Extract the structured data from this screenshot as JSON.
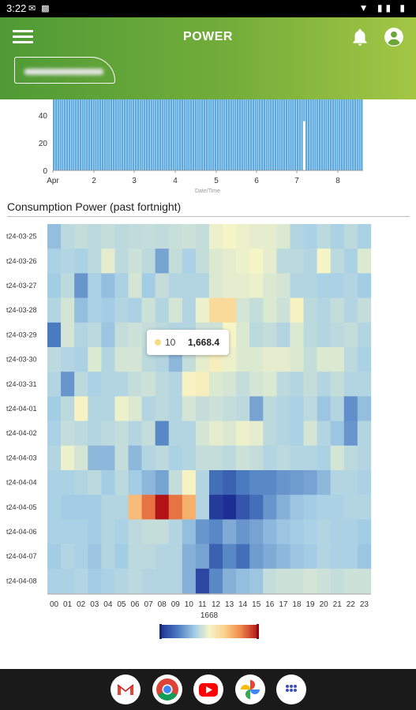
{
  "status_bar": {
    "time": "3:22"
  },
  "app_bar": {
    "title": "POWER"
  },
  "top_chart": {
    "type": "bar",
    "y_ticks": [
      "0",
      "20",
      "40"
    ],
    "x_ticks": [
      "Apr",
      "2",
      "3",
      "4",
      "5",
      "6",
      "7",
      "8"
    ],
    "xlabel": "Date/Time",
    "y_value": 60,
    "ylim": [
      0,
      60
    ],
    "bar_color": "#5aa8e0"
  },
  "heatmap": {
    "title": "Consumption Power (past fortnight)"
  },
  "chart_data": {
    "type": "heatmap",
    "title": "Consumption Power (past fortnight)",
    "rows": [
      "t24-03-25",
      "t24-03-26",
      "t24-03-27",
      "t24-03-28",
      "t24-03-29",
      "t24-03-30",
      "t24-03-31",
      "t24-04-01",
      "t24-04-02",
      "t24-04-03",
      "t24-04-04",
      "t24-04-05",
      "t24-04-06",
      "t24-04-07",
      "t24-04-08"
    ],
    "columns": [
      "00",
      "01",
      "02",
      "03",
      "04",
      "05",
      "06",
      "07",
      "08",
      "09",
      "10",
      "11",
      "12",
      "13",
      "14",
      "15",
      "16",
      "17",
      "18",
      "19",
      "20",
      "21",
      "22",
      "23"
    ],
    "color_scale": {
      "label": "1668",
      "colors": [
        "#1d2f95",
        "#4b7cc0",
        "#a7cfe6",
        "#f5f5c8",
        "#fbd08a",
        "#f08a4c",
        "#b31217"
      ]
    },
    "values": [
      [
        1100,
        1350,
        1400,
        1350,
        1400,
        1350,
        1380,
        1400,
        1380,
        1420,
        1450,
        1400,
        1650,
        1700,
        1650,
        1600,
        1600,
        1550,
        1300,
        1250,
        1350,
        1250,
        1350,
        1250
      ],
      [
        1250,
        1300,
        1250,
        1350,
        1600,
        1350,
        1450,
        1350,
        900,
        1400,
        1250,
        1400,
        1550,
        1600,
        1650,
        1700,
        1600,
        1350,
        1350,
        1300,
        1700,
        1350,
        1250,
        1550
      ],
      [
        1200,
        1350,
        800,
        1250,
        1100,
        1250,
        1500,
        1200,
        1400,
        1300,
        1300,
        1300,
        1550,
        1600,
        1600,
        1650,
        1550,
        1500,
        1300,
        1300,
        1250,
        1250,
        1300,
        1200
      ],
      [
        1300,
        1500,
        1100,
        1250,
        1200,
        1300,
        1250,
        1450,
        1300,
        1500,
        1300,
        1650,
        2100,
        2100,
        1500,
        1400,
        1550,
        1450,
        1750,
        1350,
        1300,
        1400,
        1300,
        1400
      ],
      [
        600,
        1500,
        1300,
        1350,
        1150,
        1400,
        1450,
        1400,
        1350,
        1300,
        1300,
        1450,
        1450,
        1700,
        1550,
        1350,
        1400,
        1300,
        1550,
        1350,
        1300,
        1350,
        1400,
        1300
      ],
      [
        1350,
        1300,
        1250,
        1550,
        1300,
        1500,
        1500,
        1350,
        1300,
        1050,
        1400,
        1600,
        1800,
        1650,
        1550,
        1550,
        1600,
        1600,
        1550,
        1400,
        1550,
        1550,
        1350,
        1250
      ],
      [
        1300,
        800,
        1350,
        1250,
        1300,
        1300,
        1400,
        1450,
        1350,
        1300,
        1750,
        1800,
        1550,
        1500,
        1400,
        1500,
        1550,
        1350,
        1300,
        1400,
        1300,
        1400,
        1300,
        1300
      ],
      [
        1200,
        1350,
        1750,
        1300,
        1300,
        1650,
        1550,
        1300,
        1350,
        1300,
        1500,
        1400,
        1450,
        1400,
        1350,
        900,
        1350,
        1300,
        1250,
        1350,
        1150,
        1300,
        750,
        1100
      ],
      [
        1250,
        1400,
        1350,
        1300,
        1350,
        1400,
        1300,
        1400,
        700,
        1300,
        1300,
        1500,
        1600,
        1550,
        1650,
        1600,
        1350,
        1300,
        1250,
        1500,
        1300,
        1150,
        800,
        1300
      ],
      [
        1300,
        1650,
        1500,
        1050,
        1050,
        1400,
        1050,
        1300,
        1350,
        1250,
        1300,
        1400,
        1400,
        1350,
        1450,
        1400,
        1300,
        1350,
        1300,
        1300,
        1250,
        1500,
        1350,
        1300
      ],
      [
        1250,
        1250,
        1300,
        1350,
        1200,
        1350,
        1200,
        1050,
        900,
        1400,
        1750,
        1300,
        500,
        400,
        600,
        700,
        700,
        800,
        850,
        900,
        1050,
        1300,
        1300,
        1250
      ],
      [
        1250,
        1200,
        1200,
        1200,
        1300,
        1300,
        2400,
        2900,
        3400,
        2900,
        2500,
        1300,
        100,
        0,
        300,
        500,
        800,
        1000,
        1150,
        1200,
        1250,
        1250,
        1300,
        1300
      ],
      [
        1250,
        1250,
        1250,
        1200,
        1300,
        1250,
        1350,
        1400,
        1400,
        1300,
        1100,
        800,
        700,
        950,
        800,
        900,
        1050,
        1150,
        1200,
        1250,
        1300,
        1250,
        1250,
        1200
      ],
      [
        1200,
        1300,
        1250,
        1150,
        1300,
        1200,
        1350,
        1350,
        1300,
        1300,
        1000,
        900,
        400,
        700,
        500,
        850,
        950,
        1050,
        1150,
        1200,
        1300,
        1250,
        1250,
        1150
      ],
      [
        1250,
        1250,
        1300,
        1200,
        1250,
        1300,
        1350,
        1300,
        1300,
        1300,
        1000,
        200,
        700,
        1000,
        1100,
        1150,
        1400,
        1450,
        1450,
        1500,
        1450,
        1400,
        1450,
        1450
      ]
    ],
    "tooltip": {
      "hour": "10",
      "value": "1,668.4"
    }
  },
  "icons": {
    "menu": "menu-icon",
    "bell": "bell-icon",
    "account": "account-icon"
  },
  "dock_apps": [
    "gmail-icon",
    "chrome-icon",
    "youtube-icon",
    "photos-icon",
    "app-drawer-icon"
  ]
}
